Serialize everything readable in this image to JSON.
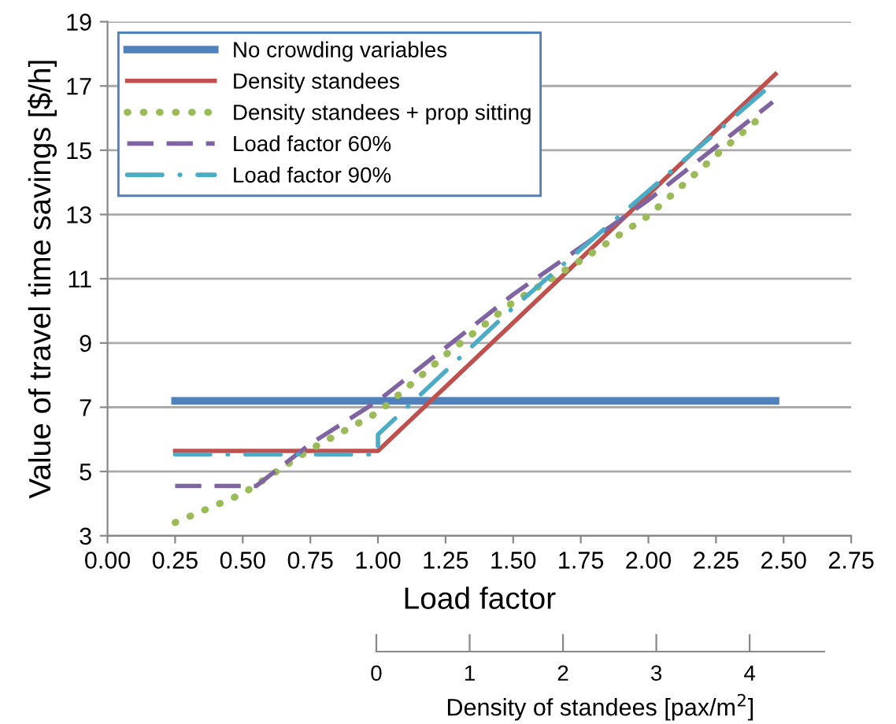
{
  "chart_data": {
    "type": "line",
    "xlabel": "Load factor",
    "ylabel": "Value of travel time savings [$/h]",
    "x2label": "Density of standees [pax/m$^{2}$]",
    "xlim": [
      0,
      2.75
    ],
    "xticks": [
      {
        "value": 0,
        "label": "0.00"
      },
      {
        "value": 0.25,
        "label": "0.25"
      },
      {
        "value": 0.5,
        "label": "0.50"
      },
      {
        "value": 0.75,
        "label": "0.75"
      },
      {
        "value": 1.0,
        "label": "1.00"
      },
      {
        "value": 1.25,
        "label": "1.25"
      },
      {
        "value": 1.5,
        "label": "1.50"
      },
      {
        "value": 1.75,
        "label": "1.75"
      },
      {
        "value": 2.0,
        "label": "2.00"
      },
      {
        "value": 2.25,
        "label": "2.25"
      },
      {
        "value": 2.5,
        "label": "2.50"
      },
      {
        "value": 2.75,
        "label": "2.75"
      }
    ],
    "ylim": [
      3,
      19
    ],
    "yticks": [
      3,
      5,
      7,
      9,
      11,
      13,
      15,
      17,
      19
    ],
    "x2lim": [
      0,
      4.8
    ],
    "x2ticks": [
      0,
      1,
      2,
      3,
      4
    ],
    "grid": "y",
    "legend": "top left",
    "marker": "none",
    "series": [
      {
        "name": "No crowding variables",
        "color": "#4f81bd",
        "line_style": "solid",
        "x": [
          0.25,
          2.47
        ],
        "values": [
          7.2,
          7.2
        ]
      },
      {
        "name": "Density standees",
        "color": "#c0504d",
        "line_style": "solid",
        "x": [
          0.25,
          1.0,
          2.47
        ],
        "values": [
          5.64,
          5.64,
          17.37
        ]
      },
      {
        "name": "Density standees + prop sitting",
        "color": "#9bbb59",
        "line_style": "dotted",
        "x": [
          0.25,
          0.5,
          0.75,
          1.0,
          1.25,
          1.5,
          1.75,
          2.0,
          2.25,
          2.43
        ],
        "values": [
          3.41,
          4.31,
          5.69,
          6.84,
          8.63,
          10.27,
          11.57,
          12.96,
          14.84,
          16.14
        ]
      },
      {
        "name": "Load factor 60%",
        "color": "#8064a2",
        "line_style": "dashed",
        "x": [
          0.25,
          0.55,
          0.75,
          1.0,
          1.5,
          2.0,
          2.46
        ],
        "values": [
          4.55,
          4.55,
          5.86,
          7.2,
          10.51,
          13.45,
          16.5
        ]
      },
      {
        "name": "Load factor 90%",
        "color": "#4bacc6",
        "line_style": "dashdot",
        "x": [
          0.25,
          1.0,
          1.0,
          1.5,
          2.44
        ],
        "values": [
          5.53,
          5.53,
          6.15,
          10.1,
          16.93
        ]
      }
    ]
  }
}
